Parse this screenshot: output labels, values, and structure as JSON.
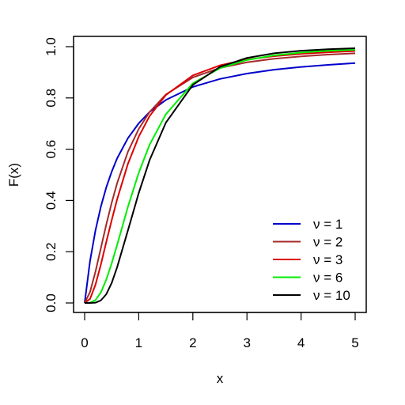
{
  "chart_data": {
    "type": "line",
    "title": "",
    "xlabel": "x",
    "ylabel": "F(x)",
    "xlim": [
      0,
      5
    ],
    "ylim": [
      0,
      1
    ],
    "xticks": [
      0,
      1,
      2,
      3,
      4,
      5
    ],
    "yticks": [
      0.0,
      0.2,
      0.4,
      0.6,
      0.8,
      1.0
    ],
    "xtick_labels": [
      "0",
      "1",
      "2",
      "3",
      "4",
      "5"
    ],
    "ytick_labels": [
      "0.0",
      "0.2",
      "0.4",
      "0.6",
      "0.8",
      "1.0"
    ],
    "grid": false,
    "legend_position": "bottom-right",
    "x": [
      0,
      0.1,
      0.2,
      0.3,
      0.4,
      0.5,
      0.6,
      0.8,
      1.0,
      1.2,
      1.5,
      2.0,
      2.5,
      3.0,
      3.5,
      4.0,
      4.5,
      5.0
    ],
    "series": [
      {
        "name": "ν = 1",
        "color": "#0000cc",
        "values": [
          0,
          0.164,
          0.283,
          0.376,
          0.451,
          0.512,
          0.564,
          0.643,
          0.701,
          0.745,
          0.792,
          0.843,
          0.874,
          0.895,
          0.91,
          0.921,
          0.929,
          0.936
        ]
      },
      {
        "name": "ν = 2",
        "color": "#a52a2a",
        "values": [
          0,
          0.043,
          0.122,
          0.214,
          0.306,
          0.391,
          0.467,
          0.59,
          0.679,
          0.745,
          0.813,
          0.88,
          0.917,
          0.939,
          0.953,
          0.962,
          0.969,
          0.974
        ]
      },
      {
        "name": "ν = 3",
        "color": "#dd0000",
        "values": [
          0,
          0.016,
          0.071,
          0.15,
          0.238,
          0.323,
          0.404,
          0.543,
          0.649,
          0.729,
          0.811,
          0.888,
          0.927,
          0.95,
          0.963,
          0.972,
          0.978,
          0.983
        ]
      },
      {
        "name": "ν = 6",
        "color": "#00ee00",
        "values": [
          0,
          0.001,
          0.011,
          0.041,
          0.091,
          0.155,
          0.226,
          0.375,
          0.508,
          0.617,
          0.736,
          0.857,
          0.916,
          0.948,
          0.966,
          0.977,
          0.984,
          0.988
        ]
      },
      {
        "name": "ν = 10",
        "color": "#000000",
        "values": [
          0,
          0.0,
          0.001,
          0.01,
          0.034,
          0.078,
          0.139,
          0.283,
          0.429,
          0.557,
          0.703,
          0.851,
          0.921,
          0.956,
          0.974,
          0.984,
          0.99,
          0.994
        ]
      }
    ]
  }
}
